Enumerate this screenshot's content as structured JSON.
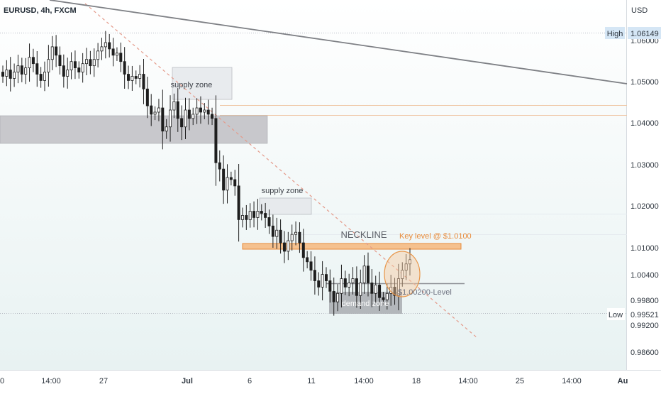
{
  "header": {
    "symbol": "EURUSD, 4h, FXCM"
  },
  "price_axis": {
    "currency": "USD",
    "tick_labels": [
      "1.06000",
      "1.05000",
      "1.04000",
      "1.03000",
      "1.02000",
      "1.01000",
      "1.00400",
      "0.99800",
      "0.99200",
      "0.98600"
    ],
    "high_label": "High",
    "high_value": "1.06149",
    "low_label": "Low",
    "low_value": "0.99521"
  },
  "time_axis": {
    "labels": [
      "0",
      "14:00",
      "27",
      "Jul",
      "6",
      "11",
      "14:00",
      "18",
      "14:00",
      "25",
      "14:00",
      "Au"
    ]
  },
  "annotations": {
    "supply_zone_upper": "supply zone",
    "supply_zone_lower": "supply zone",
    "neckline": "NECKLINE",
    "key_level": "Key level @ $1.0100",
    "level_1002": "$1.00200-Level",
    "demand_zone": "demand zone"
  },
  "colors": {
    "background_top": "#ffffff",
    "background_bottom": "#e8f2f2",
    "candle": "#1e1e1e",
    "gray_zone": "#c8c8cc",
    "key_level_fill": "#f5c18f",
    "key_level_stroke": "#e88b3a",
    "trend_dashed": "#e49a8a",
    "trend_solid": "#7e8085",
    "circle_fill": "#f6c9a0",
    "circle_stroke": "#e8964a",
    "high_badge": "#d5e6f5"
  },
  "chart_data": {
    "type": "candlestick",
    "title": "EURUSD, 4h, FXCM",
    "ylabel": "USD",
    "ylim": [
      0.9822,
      1.0701
    ],
    "y_ticks": [
      1.06,
      1.05,
      1.04,
      1.03,
      1.02,
      1.01,
      1.004,
      0.998,
      0.992,
      0.986
    ],
    "x_tick_labels": [
      "0",
      "14:00",
      "27",
      "Jul",
      "6",
      "11",
      "14:00",
      "18",
      "14:00",
      "25",
      "14:00",
      "Au"
    ],
    "high": 1.06149,
    "low": 0.99521,
    "grid": false,
    "legend": "none",
    "series": [
      {
        "close": [
          1.052,
          1.0535,
          1.0515,
          1.053,
          1.0545,
          1.0525,
          1.054,
          1.0565,
          1.055,
          1.0525,
          1.051,
          1.053,
          1.056,
          1.059,
          1.057,
          1.0545,
          1.052,
          1.0535,
          1.0555,
          1.054,
          1.053,
          1.055,
          1.056,
          1.0545,
          1.056,
          1.058,
          1.059,
          1.06,
          1.0585,
          1.057,
          1.0575,
          1.0555,
          1.0525,
          1.051,
          1.052,
          1.0515,
          1.0525,
          1.049,
          1.045,
          1.043,
          1.0435,
          1.0445,
          1.039,
          1.04,
          1.044,
          1.046,
          1.042,
          1.04,
          1.044,
          1.042,
          1.043,
          1.0445,
          1.0435,
          1.044,
          1.043,
          1.042,
          1.0315,
          1.03,
          1.025,
          1.028,
          1.0275,
          1.026,
          1.018,
          1.019,
          1.018,
          1.02,
          1.0185,
          1.02,
          1.0195,
          1.0185,
          1.0165,
          1.014,
          1.0155,
          1.0125,
          1.0105,
          1.013,
          1.0145,
          1.015,
          1.0125,
          1.009,
          1.008,
          1.006,
          1.0035,
          1.002,
          1.005,
          1.0035,
          1.001,
          0.9985,
          1.0005,
          1.004,
          1.002,
          1.003,
          1.004,
          1.0,
          1.003,
          1.007,
          1.003,
          1.0005,
          1.0025,
          0.9995,
          0.999,
          1.0005,
          1.002,
          1.0,
          1.004,
          1.006,
          1.0075,
          1.0085
        ]
      }
    ]
  }
}
